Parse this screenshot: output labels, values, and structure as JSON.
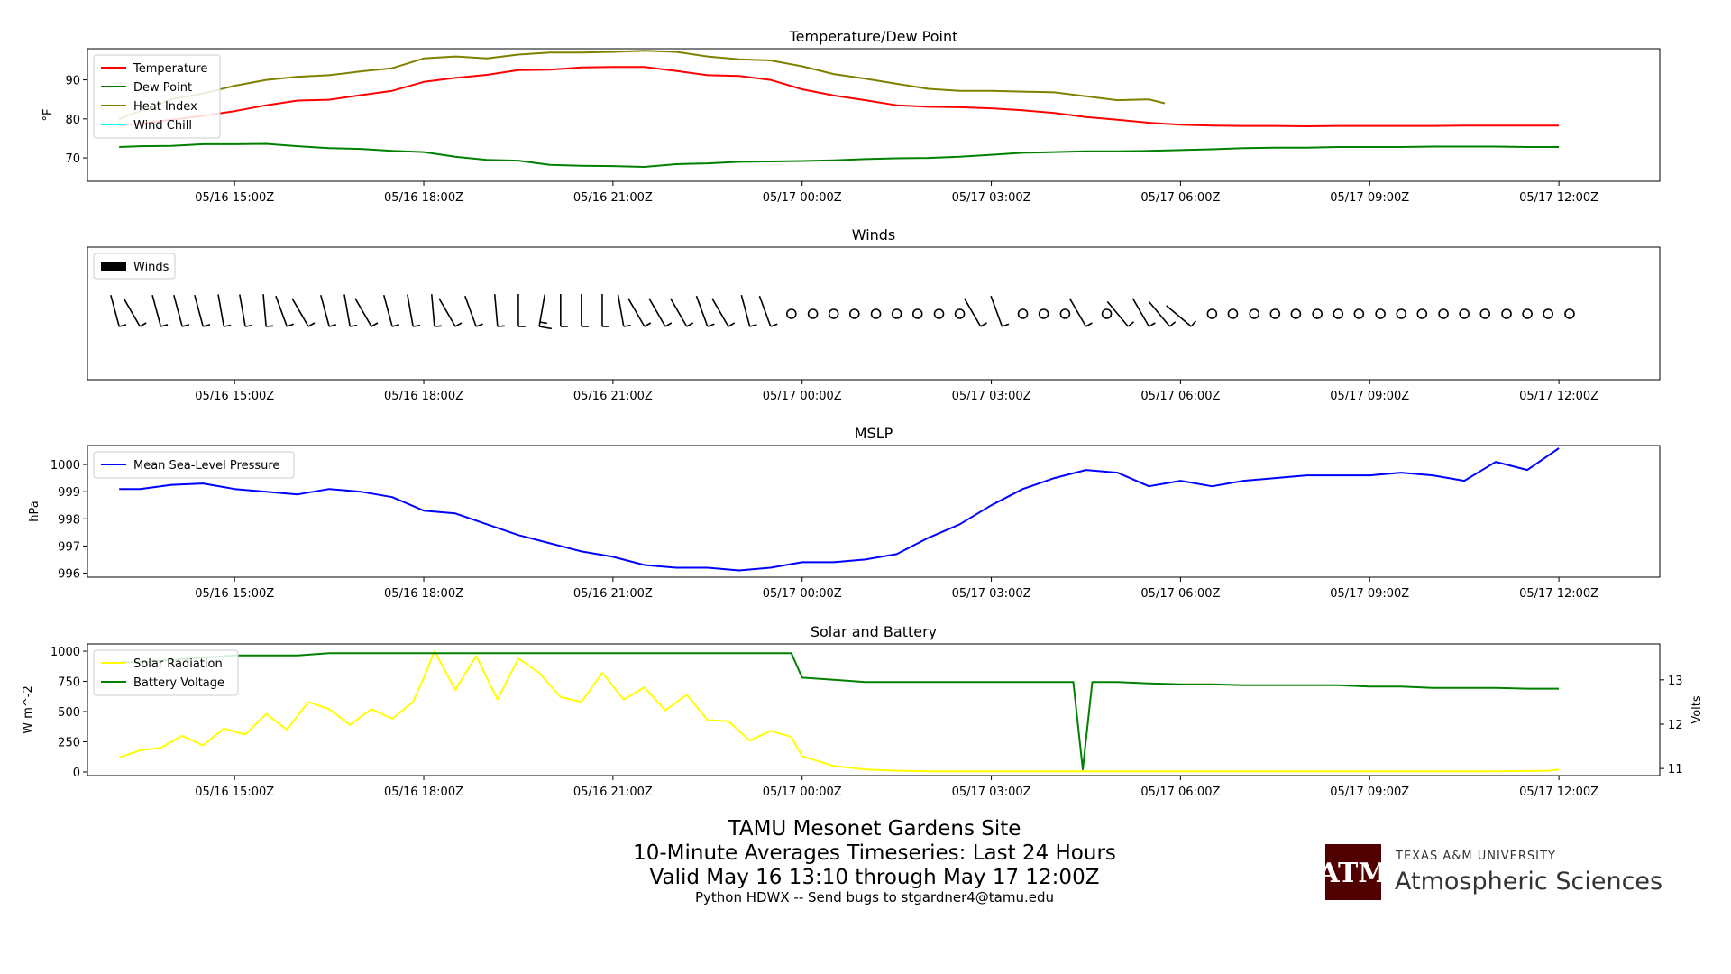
{
  "figure": {
    "title": "TAMU Mesonet Gardens Site",
    "subtitle": "10-Minute Averages Timeseries: Last 24 Hours",
    "valid": "Valid May 16 13:10 through May 17 12:00Z",
    "credit": "Python HDWX -- Send bugs to stgardner4@tamu.edu",
    "logo": {
      "line1": "TEXAS A&M UNIVERSITY",
      "line2": "Atmospheric Sciences",
      "color": "#500000",
      "mark": "ATM"
    }
  },
  "chart_data": [
    {
      "type": "line",
      "title": "Temperature/Dew Point",
      "ylabel": "°F",
      "xlim": [
        12.667,
        37.6
      ],
      "ylim": [
        64,
        98
      ],
      "yticks": [
        70,
        80,
        90
      ],
      "xticks": [
        15,
        18,
        21,
        24,
        27,
        30,
        33,
        36
      ],
      "xticklabels": [
        "05/16 15:00Z",
        "05/16 18:00Z",
        "05/16 21:00Z",
        "05/17 00:00Z",
        "05/17 03:00Z",
        "05/17 06:00Z",
        "05/17 09:00Z",
        "05/17 12:00Z"
      ],
      "legend": "top-left",
      "series": [
        {
          "name": "Temperature",
          "color": "#ff0000",
          "x": [
            13.17,
            13.5,
            14,
            14.5,
            15,
            15.5,
            16,
            16.5,
            17,
            17.5,
            18,
            18.5,
            19,
            19.5,
            20,
            20.5,
            21,
            21.5,
            22,
            22.5,
            23,
            23.5,
            24,
            24.5,
            25,
            25.5,
            26,
            26.5,
            27,
            27.5,
            28,
            28.5,
            29,
            29.5,
            30,
            30.5,
            31,
            31.5,
            32,
            32.5,
            33,
            33.5,
            34,
            34.5,
            35,
            35.5,
            36
          ],
          "y": [
            78.2,
            78.8,
            79.8,
            80.8,
            82,
            83.5,
            84.7,
            84.9,
            86.1,
            87.2,
            89.5,
            90.5,
            91.3,
            92.5,
            92.6,
            93.2,
            93.3,
            93.3,
            92.3,
            91.2,
            91,
            90,
            87.6,
            86,
            84.8,
            83.5,
            83.1,
            83,
            82.7,
            82.2,
            81.5,
            80.5,
            79.8,
            79,
            78.5,
            78.3,
            78.2,
            78.2,
            78.1,
            78.2,
            78.2,
            78.2,
            78.2,
            78.3,
            78.3,
            78.3,
            78.3
          ]
        },
        {
          "name": "Dew Point",
          "color": "#008000",
          "x": [
            13.17,
            13.5,
            14,
            14.5,
            15,
            15.5,
            16,
            16.5,
            17,
            17.5,
            18,
            18.5,
            19,
            19.5,
            20,
            20.5,
            21,
            21.5,
            22,
            22.5,
            23,
            23.5,
            24,
            24.5,
            25,
            25.5,
            26,
            26.5,
            27,
            27.5,
            28,
            28.5,
            29,
            29.5,
            30,
            30.5,
            31,
            31.5,
            32,
            32.5,
            33,
            33.5,
            34,
            34.5,
            35,
            35.5,
            36
          ],
          "y": [
            72.8,
            73,
            73.1,
            73.5,
            73.5,
            73.6,
            73,
            72.5,
            72.3,
            71.8,
            71.5,
            70.3,
            69.5,
            69.3,
            68.2,
            68,
            67.9,
            67.7,
            68.4,
            68.6,
            69,
            69.1,
            69.2,
            69.4,
            69.7,
            69.9,
            70,
            70.3,
            70.8,
            71.3,
            71.5,
            71.7,
            71.7,
            71.8,
            72,
            72.2,
            72.5,
            72.6,
            72.6,
            72.8,
            72.8,
            72.8,
            72.9,
            72.9,
            72.9,
            72.8,
            72.8
          ]
        },
        {
          "name": "Heat Index",
          "color": "#808000",
          "x": [
            13.17,
            13.5,
            14,
            14.5,
            15,
            15.5,
            16,
            16.5,
            17,
            17.5,
            18,
            18.5,
            19,
            19.5,
            20,
            20.5,
            21,
            21.5,
            22,
            22.5,
            23,
            23.5,
            24,
            24.5,
            25,
            25.5,
            26,
            26.5,
            27,
            27.5,
            28,
            28.5,
            29,
            29.5,
            29.75
          ],
          "y": [
            80,
            82,
            85,
            86.5,
            88.5,
            90,
            90.8,
            91.2,
            92.2,
            93,
            95.5,
            96,
            95.5,
            96.5,
            97,
            97,
            97.2,
            97.5,
            97.2,
            96,
            95.3,
            95,
            93.5,
            91.5,
            90.3,
            89,
            87.7,
            87.2,
            87.2,
            87,
            86.8,
            85.8,
            84.8,
            85,
            84
          ]
        },
        {
          "name": "Wind Chill",
          "color": "#00ffff",
          "x": [],
          "y": []
        }
      ]
    },
    {
      "type": "barbs",
      "title": "Winds",
      "legend": "top-left",
      "legend_entry": "Winds",
      "xlim": [
        12.667,
        37.6
      ],
      "xticks": [
        15,
        18,
        21,
        24,
        27,
        30,
        33,
        36
      ],
      "xticklabels": [
        "05/16 15:00Z",
        "05/16 18:00Z",
        "05/16 21:00Z",
        "05/17 00:00Z",
        "05/17 03:00Z",
        "05/17 06:00Z",
        "05/17 09:00Z",
        "05/17 12:00Z"
      ],
      "x": [
        13.17,
        13.5,
        13.83,
        14.17,
        14.5,
        14.83,
        15.17,
        15.5,
        15.83,
        16.17,
        16.5,
        16.83,
        17.17,
        17.5,
        17.83,
        18.17,
        18.5,
        18.83,
        19.17,
        19.5,
        19.83,
        20.17,
        20.5,
        20.83,
        21.17,
        21.5,
        21.83,
        22.17,
        22.5,
        22.83,
        23.17,
        23.5,
        23.83,
        24.17,
        24.5,
        24.83,
        25.17,
        25.5,
        25.83,
        26.17,
        26.5,
        26.83,
        27.17,
        27.5,
        27.83,
        28.17,
        28.5,
        28.83,
        29.17,
        29.5,
        29.83,
        30.17,
        30.5,
        30.83,
        31.17,
        31.5,
        31.83,
        32.17,
        32.5,
        32.83,
        33.17,
        33.5,
        33.83,
        34.17,
        34.5,
        34.83,
        35.17,
        35.5,
        35.83,
        36.17
      ],
      "calm": [
        false,
        false,
        false,
        false,
        false,
        false,
        false,
        false,
        false,
        false,
        false,
        false,
        false,
        false,
        false,
        false,
        false,
        false,
        false,
        false,
        false,
        false,
        false,
        false,
        false,
        false,
        false,
        false,
        false,
        false,
        false,
        false,
        true,
        true,
        true,
        true,
        true,
        true,
        true,
        true,
        true,
        false,
        false,
        true,
        true,
        true,
        false,
        true,
        false,
        false,
        false,
        false,
        true,
        true,
        true,
        true,
        true,
        true,
        true,
        true,
        true,
        true,
        true,
        true,
        true,
        true,
        true,
        true,
        true,
        true
      ],
      "from_deg": [
        345,
        330,
        345,
        345,
        345,
        350,
        350,
        355,
        340,
        330,
        345,
        350,
        330,
        345,
        350,
        355,
        330,
        340,
        355,
        0,
        10,
        0,
        0,
        0,
        350,
        330,
        330,
        330,
        340,
        330,
        345,
        340,
        0,
        0,
        0,
        0,
        0,
        0,
        0,
        0,
        0,
        330,
        340,
        0,
        0,
        0,
        330,
        0,
        320,
        330,
        320,
        310,
        0,
        0,
        0,
        0,
        0,
        0,
        0,
        0,
        0,
        0,
        0,
        0,
        0,
        0,
        0,
        0,
        0,
        0
      ],
      "speed_kt": [
        5,
        5,
        5,
        5,
        5,
        5,
        5,
        5,
        5,
        5,
        5,
        5,
        5,
        5,
        5,
        5,
        5,
        5,
        5,
        5,
        10,
        5,
        5,
        5,
        5,
        5,
        5,
        5,
        5,
        5,
        5,
        5,
        0,
        0,
        0,
        0,
        0,
        0,
        0,
        0,
        0,
        5,
        5,
        0,
        0,
        0,
        5,
        0,
        5,
        5,
        5,
        5,
        0,
        0,
        0,
        0,
        0,
        0,
        0,
        0,
        0,
        0,
        0,
        0,
        0,
        0,
        0,
        0,
        0,
        0
      ]
    },
    {
      "type": "line",
      "title": "MSLP",
      "ylabel": "hPa",
      "xlim": [
        12.667,
        37.6
      ],
      "ylim": [
        995.85,
        1000.7
      ],
      "yticks": [
        996,
        997,
        998,
        999,
        1000
      ],
      "xticks": [
        15,
        18,
        21,
        24,
        27,
        30,
        33,
        36
      ],
      "xticklabels": [
        "05/16 15:00Z",
        "05/16 18:00Z",
        "05/16 21:00Z",
        "05/17 00:00Z",
        "05/17 03:00Z",
        "05/17 06:00Z",
        "05/17 09:00Z",
        "05/17 12:00Z"
      ],
      "legend": "top-left",
      "series": [
        {
          "name": "Mean Sea-Level Pressure",
          "color": "#0000ff",
          "x": [
            13.17,
            13.5,
            14,
            14.5,
            15,
            15.5,
            16,
            16.5,
            17,
            17.5,
            18,
            18.5,
            19,
            19.5,
            20,
            20.5,
            21,
            21.5,
            22,
            22.5,
            23,
            23.5,
            24,
            24.5,
            25,
            25.5,
            26,
            26.5,
            27,
            27.5,
            28,
            28.5,
            29,
            29.5,
            30,
            30.5,
            31,
            31.5,
            32,
            32.5,
            33,
            33.5,
            34,
            34.5,
            35,
            35.5,
            36
          ],
          "y": [
            999.1,
            999.1,
            999.25,
            999.3,
            999.1,
            999,
            998.9,
            999.1,
            999,
            998.8,
            998.3,
            998.2,
            997.8,
            997.4,
            997.1,
            996.8,
            996.6,
            996.3,
            996.2,
            996.2,
            996.1,
            996.2,
            996.4,
            996.4,
            996.5,
            996.7,
            997.3,
            997.8,
            998.5,
            999.1,
            999.5,
            999.8,
            999.7,
            999.2,
            999.4,
            999.2,
            999.4,
            999.5,
            999.6,
            999.6,
            999.6,
            999.7,
            999.6,
            999.4,
            1000.1,
            999.8,
            1000.6
          ]
        }
      ]
    },
    {
      "type": "line",
      "title": "Solar and Battery",
      "ylabel": "W m^-2",
      "ylabel_right": "Volts",
      "xlim": [
        12.667,
        37.6
      ],
      "ylim": [
        -30,
        1060
      ],
      "yticks": [
        0,
        250,
        500,
        750,
        1000
      ],
      "ylim_right": [
        10.84,
        13.81
      ],
      "yticks_right": [
        11,
        12,
        13
      ],
      "xticks": [
        15,
        18,
        21,
        24,
        27,
        30,
        33,
        36
      ],
      "xticklabels": [
        "05/16 15:00Z",
        "05/16 18:00Z",
        "05/16 21:00Z",
        "05/17 00:00Z",
        "05/17 03:00Z",
        "05/17 06:00Z",
        "05/17 09:00Z",
        "05/17 12:00Z"
      ],
      "legend": "top-left",
      "series": [
        {
          "name": "Solar Radiation",
          "color": "#ffff00",
          "axis": "left",
          "x": [
            13.17,
            13.5,
            13.83,
            14.17,
            14.5,
            14.83,
            15.17,
            15.5,
            15.83,
            16.17,
            16.5,
            16.83,
            17.17,
            17.5,
            17.83,
            18,
            18.17,
            18.5,
            18.83,
            19.17,
            19.5,
            19.83,
            20.17,
            20.5,
            20.83,
            21.17,
            21.5,
            21.83,
            22.17,
            22.5,
            22.83,
            23.17,
            23.5,
            23.83,
            24,
            24.5,
            25,
            25.5,
            26,
            27,
            28,
            29,
            30,
            31,
            32,
            33,
            34,
            35,
            35.83,
            36
          ],
          "y": [
            120,
            180,
            200,
            300,
            220,
            360,
            310,
            480,
            350,
            580,
            520,
            390,
            520,
            440,
            580,
            780,
            1000,
            680,
            960,
            600,
            940,
            820,
            620,
            580,
            820,
            600,
            700,
            510,
            640,
            430,
            420,
            260,
            340,
            290,
            130,
            50,
            20,
            10,
            5,
            5,
            5,
            5,
            5,
            5,
            5,
            5,
            5,
            5,
            10,
            20
          ]
        },
        {
          "name": "Battery Voltage",
          "color": "#008000",
          "axis": "right",
          "x": [
            13.17,
            13.5,
            14,
            14.5,
            15,
            15.5,
            16,
            16.5,
            17,
            17.5,
            18,
            18.5,
            19,
            19.5,
            20,
            20.5,
            21,
            21.5,
            22,
            22.5,
            23,
            23.5,
            23.83,
            24,
            24.5,
            25,
            25.5,
            26,
            26.5,
            27,
            27.5,
            28,
            28.3,
            28.45,
            28.6,
            29,
            29.5,
            30,
            30.5,
            31,
            31.5,
            32,
            32.5,
            33,
            33.5,
            34,
            34.5,
            35,
            35.5,
            36
          ],
          "y": [
            13.4,
            13.4,
            13.45,
            13.5,
            13.55,
            13.55,
            13.55,
            13.6,
            13.6,
            13.6,
            13.6,
            13.6,
            13.6,
            13.6,
            13.6,
            13.6,
            13.6,
            13.6,
            13.6,
            13.6,
            13.6,
            13.6,
            13.6,
            13.05,
            13,
            12.95,
            12.95,
            12.95,
            12.95,
            12.95,
            12.95,
            12.95,
            12.95,
            10.98,
            12.95,
            12.95,
            12.92,
            12.9,
            12.9,
            12.88,
            12.88,
            12.88,
            12.88,
            12.85,
            12.85,
            12.82,
            12.82,
            12.82,
            12.8,
            12.8
          ]
        }
      ]
    }
  ]
}
